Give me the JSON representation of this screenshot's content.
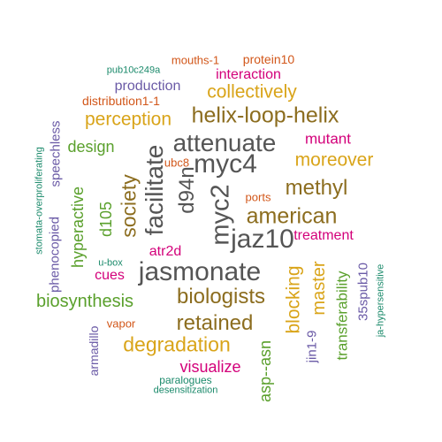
{
  "colors": {
    "gray": "#555555",
    "brown": "#8c6d1f",
    "gold": "#d9a419",
    "magenta": "#d3007a",
    "purple": "#6a5aa6",
    "green": "#5aa02c",
    "teal": "#1b8a6b",
    "orange": "#d2571a"
  },
  "words": [
    {
      "text": "jasmonate",
      "color": "gray",
      "rotated": false
    },
    {
      "text": "myc4",
      "color": "gray",
      "rotated": false
    },
    {
      "text": "jaz10",
      "color": "gray",
      "rotated": false
    },
    {
      "text": "attenuate",
      "color": "gray",
      "rotated": false
    },
    {
      "text": "myc2",
      "color": "gray",
      "rotated": true
    },
    {
      "text": "facilitate",
      "color": "gray",
      "rotated": true
    },
    {
      "text": "d94n",
      "color": "gray",
      "rotated": true
    },
    {
      "text": "helix-loop-helix",
      "color": "brown",
      "rotated": false
    },
    {
      "text": "american",
      "color": "brown",
      "rotated": false
    },
    {
      "text": "biologists",
      "color": "brown",
      "rotated": false
    },
    {
      "text": "retained",
      "color": "brown",
      "rotated": false
    },
    {
      "text": "methyl",
      "color": "brown",
      "rotated": false
    },
    {
      "text": "society",
      "color": "brown",
      "rotated": true
    },
    {
      "text": "degradation",
      "color": "gold",
      "rotated": false
    },
    {
      "text": "moreover",
      "color": "gold",
      "rotated": false
    },
    {
      "text": "perception",
      "color": "gold",
      "rotated": false
    },
    {
      "text": "collectively",
      "color": "gold",
      "rotated": false
    },
    {
      "text": "blocking",
      "color": "gold",
      "rotated": true
    },
    {
      "text": "master",
      "color": "gold",
      "rotated": true
    },
    {
      "text": "biosynthesis",
      "color": "green",
      "rotated": false
    },
    {
      "text": "design",
      "color": "green",
      "rotated": false
    },
    {
      "text": "hyperactive",
      "color": "green",
      "rotated": true
    },
    {
      "text": "d105",
      "color": "green",
      "rotated": true
    },
    {
      "text": "asp--asn",
      "color": "green",
      "rotated": true
    },
    {
      "text": "transferability",
      "color": "green",
      "rotated": true
    },
    {
      "text": "mutant",
      "color": "magenta",
      "rotated": false
    },
    {
      "text": "treatment",
      "color": "magenta",
      "rotated": false
    },
    {
      "text": "visualize",
      "color": "magenta",
      "rotated": false
    },
    {
      "text": "interaction",
      "color": "magenta",
      "rotated": false
    },
    {
      "text": "cues",
      "color": "magenta",
      "rotated": false
    },
    {
      "text": "atr2d",
      "color": "magenta",
      "rotated": false
    },
    {
      "text": "production",
      "color": "purple",
      "rotated": false
    },
    {
      "text": "speechless",
      "color": "purple",
      "rotated": true
    },
    {
      "text": "phenocopied",
      "color": "purple",
      "rotated": true
    },
    {
      "text": "jin1-9",
      "color": "purple",
      "rotated": true
    },
    {
      "text": "35spub10",
      "color": "purple",
      "rotated": true
    },
    {
      "text": "armadillo",
      "color": "purple",
      "rotated": true
    },
    {
      "text": "protein10",
      "color": "orange",
      "rotated": false
    },
    {
      "text": "mouths-1",
      "color": "orange",
      "rotated": false
    },
    {
      "text": "distribution1-1",
      "color": "orange",
      "rotated": false
    },
    {
      "text": "ubc8",
      "color": "orange",
      "rotated": false
    },
    {
      "text": "ports",
      "color": "orange",
      "rotated": false
    },
    {
      "text": "vapor",
      "color": "orange",
      "rotated": false
    },
    {
      "text": "pub10c249a",
      "color": "teal",
      "rotated": false
    },
    {
      "text": "u-box",
      "color": "teal",
      "rotated": false
    },
    {
      "text": "paralogues",
      "color": "teal",
      "rotated": false
    },
    {
      "text": "desensitization",
      "color": "teal",
      "rotated": false
    },
    {
      "text": "stomata-overproliferating",
      "color": "teal",
      "rotated": true
    },
    {
      "text": "ja-hypersensitive",
      "color": "teal",
      "rotated": true
    }
  ]
}
